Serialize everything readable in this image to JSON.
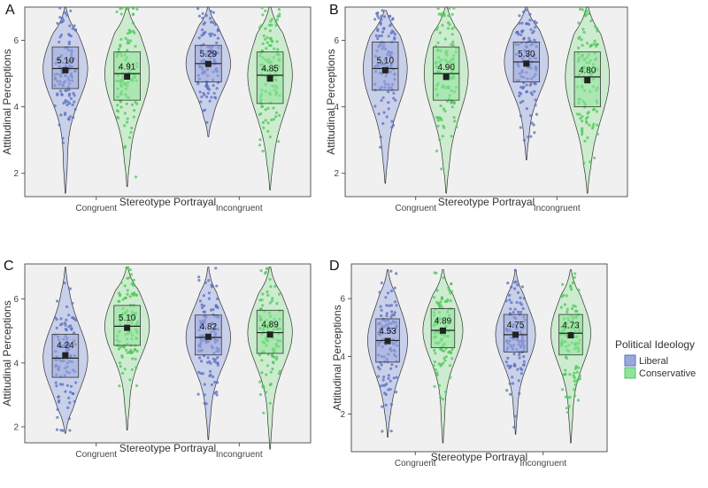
{
  "colors": {
    "liberal_point": "#5a6fbf",
    "liberal_fill": "#c9d0ea",
    "liberal_box": "#9aa8db",
    "conservative_point": "#4cc75a",
    "conservative_fill": "#cdeccf",
    "conservative_box": "#90e39a"
  },
  "legend": {
    "title": "Political Ideology",
    "items": [
      "Liberal",
      "Conservative"
    ]
  },
  "chart_data": [
    {
      "type": "violin",
      "panel": "A",
      "categories": [
        "Congruent",
        "Incongruent"
      ],
      "xlabel": "Stereotype Portrayal",
      "ylabel": "Attitudinal Perceptions",
      "ylim": [
        1.3,
        7.0
      ],
      "yticks": [
        2,
        4,
        6
      ],
      "legend": false,
      "series": [
        {
          "name": "Liberal",
          "means": [
            5.1,
            5.29
          ],
          "medians": [
            5.15,
            5.3
          ],
          "q1": [
            4.55,
            4.75
          ],
          "q3": [
            5.8,
            5.85
          ],
          "mins": [
            1.4,
            3.1
          ],
          "maxs": [
            7.0,
            7.0
          ]
        },
        {
          "name": "Conservative",
          "means": [
            4.91,
            4.85
          ],
          "medians": [
            5.0,
            4.95
          ],
          "q1": [
            4.2,
            4.1
          ],
          "q3": [
            5.65,
            5.65
          ],
          "mins": [
            1.6,
            1.5
          ],
          "maxs": [
            7.0,
            7.0
          ]
        }
      ],
      "mean_labels": [
        [
          "5.10",
          "5.29"
        ],
        [
          "4.91",
          "4.85"
        ]
      ]
    },
    {
      "type": "violin",
      "panel": "B",
      "categories": [
        "Congruent",
        "Incongruent"
      ],
      "xlabel": "Stereotype Portrayal",
      "ylabel": "Attitudinal Perceptions",
      "ylim": [
        1.3,
        7.0
      ],
      "yticks": [
        2,
        4,
        6
      ],
      "legend": false,
      "series": [
        {
          "name": "Liberal",
          "means": [
            5.1,
            5.3
          ],
          "medians": [
            5.15,
            5.35
          ],
          "q1": [
            4.5,
            4.75
          ],
          "q3": [
            5.95,
            5.95
          ],
          "mins": [
            1.7,
            2.4
          ],
          "maxs": [
            6.9,
            7.0
          ]
        },
        {
          "name": "Conservative",
          "means": [
            4.9,
            4.8
          ],
          "medians": [
            5.0,
            4.9
          ],
          "q1": [
            4.2,
            4.0
          ],
          "q3": [
            5.8,
            5.65
          ],
          "mins": [
            1.4,
            1.4
          ],
          "maxs": [
            7.0,
            7.0
          ]
        }
      ],
      "mean_labels": [
        [
          "5.10",
          "5.30"
        ],
        [
          "4.90",
          "4.80"
        ]
      ]
    },
    {
      "type": "violin",
      "panel": "C",
      "categories": [
        "Congruent",
        "Incongruent"
      ],
      "xlabel": "Stereotype Portrayal",
      "ylabel": "Attitudinal Perceptions",
      "ylim": [
        1.5,
        7.1
      ],
      "yticks": [
        2,
        4,
        6
      ],
      "legend": false,
      "series": [
        {
          "name": "Liberal",
          "means": [
            4.24,
            4.82
          ],
          "medians": [
            4.15,
            4.8
          ],
          "q1": [
            3.55,
            4.25
          ],
          "q3": [
            4.9,
            5.5
          ],
          "mins": [
            1.8,
            1.6
          ],
          "maxs": [
            7.0,
            7.0
          ]
        },
        {
          "name": "Conservative",
          "means": [
            5.1,
            4.89
          ],
          "medians": [
            5.15,
            4.95
          ],
          "q1": [
            4.55,
            4.3
          ],
          "q3": [
            5.8,
            5.65
          ],
          "mins": [
            1.9,
            1.3
          ],
          "maxs": [
            7.0,
            7.0
          ]
        }
      ],
      "mean_labels": [
        [
          "4.24",
          "4.82"
        ],
        [
          "5.10",
          "4.89"
        ]
      ]
    },
    {
      "type": "violin",
      "panel": "D",
      "categories": [
        "Congruent",
        "Incongruent"
      ],
      "xlabel": "Stereotype Portrayal",
      "ylabel": "Attitudinal Perceptions",
      "ylim": [
        0.7,
        7.2
      ],
      "yticks": [
        2,
        4,
        6
      ],
      "legend": true,
      "series": [
        {
          "name": "Liberal",
          "means": [
            4.53,
            4.75
          ],
          "medians": [
            4.55,
            4.75
          ],
          "q1": [
            3.8,
            4.15
          ],
          "q3": [
            5.3,
            5.45
          ],
          "mins": [
            1.2,
            1.3
          ],
          "maxs": [
            7.0,
            7.0
          ]
        },
        {
          "name": "Conservative",
          "means": [
            4.89,
            4.73
          ],
          "medians": [
            4.9,
            4.8
          ],
          "q1": [
            4.3,
            4.05
          ],
          "q3": [
            5.65,
            5.45
          ],
          "mins": [
            1.0,
            1.0
          ],
          "maxs": [
            7.0,
            7.0
          ]
        }
      ],
      "mean_labels": [
        [
          "4.53",
          "4.75"
        ],
        [
          "4.89",
          "4.73"
        ]
      ]
    }
  ]
}
